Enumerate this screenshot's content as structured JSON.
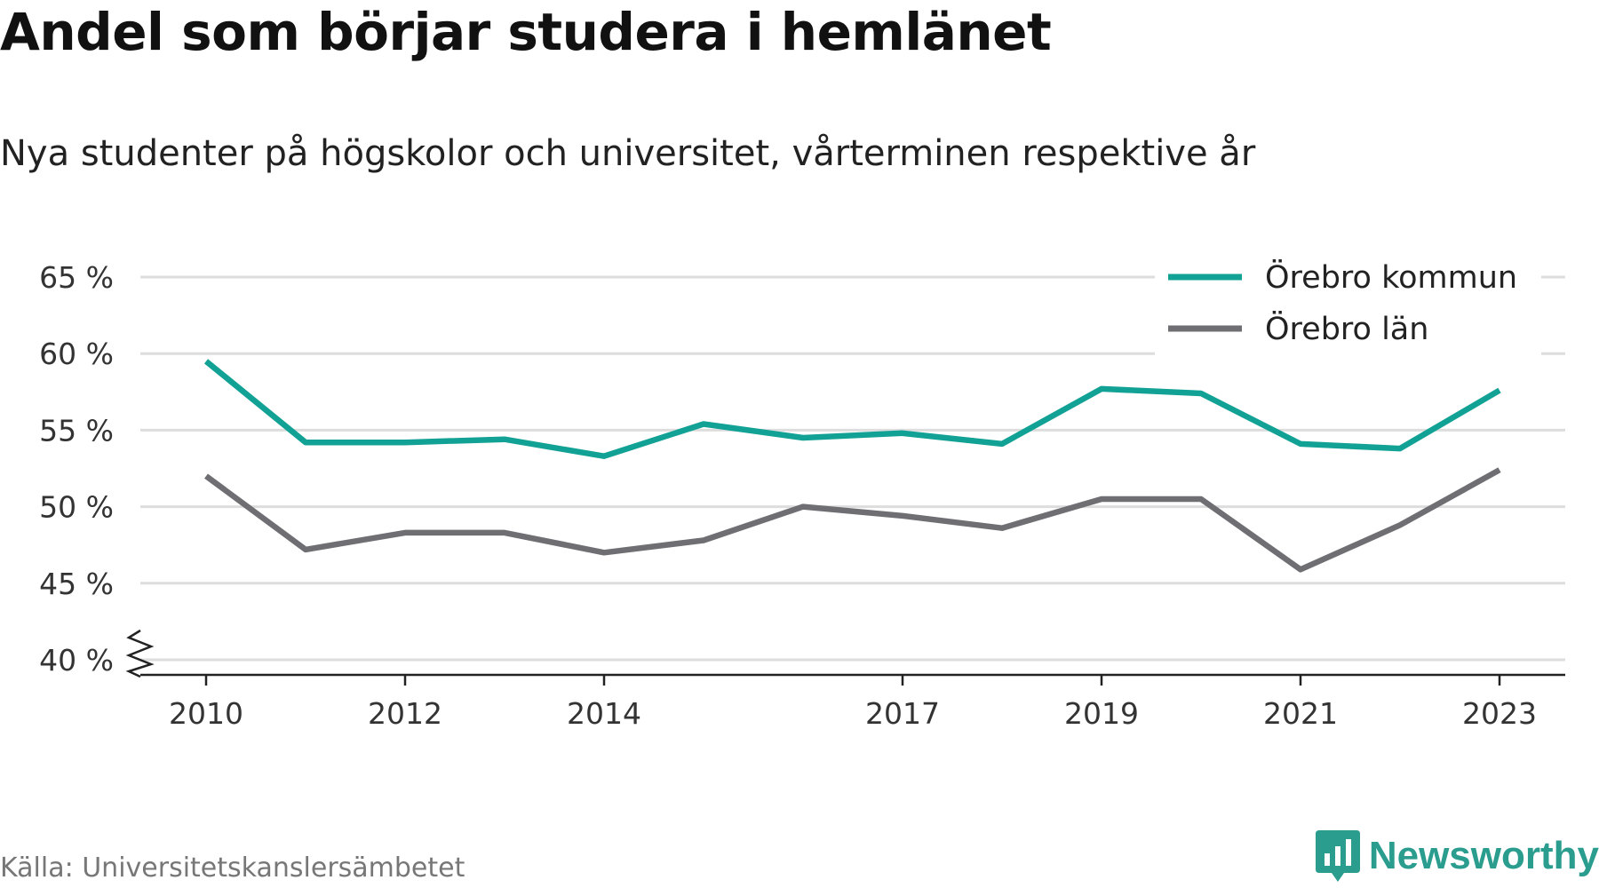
{
  "title": "Andel som börjar studera i hemlänet",
  "subtitle": "Nya studenter på högskolor och universitet, vårterminen respektive år",
  "source": "Källa: Universitetskanslersämbetet",
  "brand": "Newsworthy",
  "colors": {
    "series1": "#12a195",
    "series2": "#6e6e73",
    "grid": "#dddddd",
    "brand": "#2a9d8f"
  },
  "chart_data": {
    "type": "line",
    "x": [
      2010,
      2011,
      2012,
      2013,
      2014,
      2015,
      2016,
      2017,
      2018,
      2019,
      2020,
      2021,
      2022,
      2023
    ],
    "x_tick_labels": [
      "2010",
      "2012",
      "2014",
      "2017",
      "2019",
      "2021",
      "2023"
    ],
    "y_ticks": [
      40,
      45,
      50,
      55,
      60,
      65
    ],
    "y_tick_labels": [
      "40 %",
      "45 %",
      "50 %",
      "55 %",
      "60 %",
      "65 %"
    ],
    "ylim": [
      40,
      65
    ],
    "axis_break": true,
    "grid": true,
    "legend_position": "top-right",
    "series": [
      {
        "name": "Örebro kommun",
        "values": [
          59.5,
          54.2,
          54.2,
          54.4,
          53.3,
          55.4,
          54.5,
          54.8,
          54.1,
          57.7,
          57.4,
          54.1,
          53.8,
          57.6
        ]
      },
      {
        "name": "Örebro län",
        "values": [
          52.0,
          47.2,
          48.3,
          48.3,
          47.0,
          47.8,
          50.0,
          49.4,
          48.6,
          50.5,
          50.5,
          45.9,
          48.8,
          52.4
        ]
      }
    ]
  }
}
